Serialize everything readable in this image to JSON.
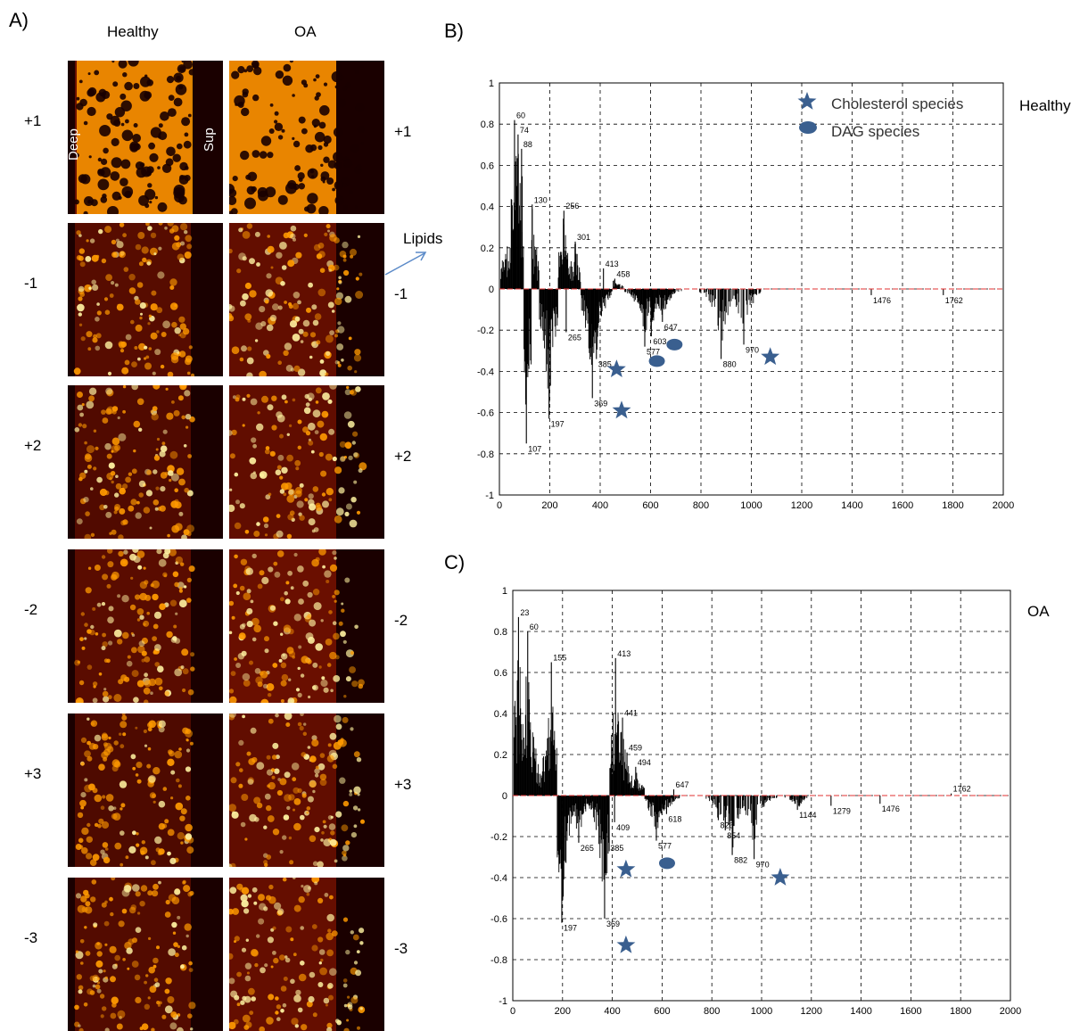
{
  "panel_a": {
    "letter": "A)",
    "columns": [
      "Healthy",
      "OA"
    ],
    "row_labels_left": [
      "+1",
      "-1",
      "+2",
      "-2",
      "+3",
      "-3"
    ],
    "row_labels_right": [
      "+1",
      "-1",
      "+2",
      "-2",
      "+3",
      "-3"
    ],
    "inset_deep": "Deep",
    "inset_sup": "Sup",
    "annotation": "Lipids",
    "colors": {
      "dark": "#1a0000",
      "mid": "#8b1500",
      "bright": "#ff9a00",
      "hot": "#fff2a0"
    }
  },
  "panel_b": {
    "letter": "B)",
    "condition": "Healthy"
  },
  "panel_c": {
    "letter": "C)",
    "condition": "OA"
  },
  "legend": {
    "star": "Cholesterol species",
    "ellipse": "DAG species",
    "marker_color": "#3a5f8f"
  },
  "chart_data": [
    {
      "type": "bar",
      "panel": "B",
      "xlim": [
        0,
        2000
      ],
      "ylim": [
        -1,
        1
      ],
      "xticks": [
        0,
        200,
        400,
        600,
        800,
        1000,
        1200,
        1400,
        1600,
        1800,
        2000
      ],
      "yticks": [
        1,
        0.8,
        0.6,
        0.4,
        0.2,
        0,
        -0.2,
        -0.4,
        -0.6,
        -0.8,
        -1
      ],
      "grid": true,
      "peaks": [
        {
          "x": 60,
          "y": 0.82,
          "label": "60"
        },
        {
          "x": 74,
          "y": 0.75,
          "label": "74"
        },
        {
          "x": 88,
          "y": 0.68,
          "label": "88"
        },
        {
          "x": 130,
          "y": 0.41,
          "label": "130"
        },
        {
          "x": 256,
          "y": 0.38,
          "label": "256"
        },
        {
          "x": 301,
          "y": 0.23,
          "label": "301"
        },
        {
          "x": 413,
          "y": 0.1,
          "label": "413"
        },
        {
          "x": 458,
          "y": 0.05,
          "label": "458"
        },
        {
          "x": 107,
          "y": -0.75,
          "label": "107"
        },
        {
          "x": 197,
          "y": -0.63,
          "label": "197"
        },
        {
          "x": 265,
          "y": -0.21,
          "label": "265"
        },
        {
          "x": 369,
          "y": -0.53,
          "label": "369"
        },
        {
          "x": 385,
          "y": -0.34,
          "label": "385"
        },
        {
          "x": 577,
          "y": -0.28,
          "label": "577"
        },
        {
          "x": 603,
          "y": -0.23,
          "label": "603"
        },
        {
          "x": 647,
          "y": -0.16,
          "label": "647"
        },
        {
          "x": 880,
          "y": -0.34,
          "label": "880"
        },
        {
          "x": 970,
          "y": -0.27,
          "label": "970"
        },
        {
          "x": 1476,
          "y": -0.03,
          "label": "1476"
        },
        {
          "x": 1762,
          "y": -0.03,
          "label": "1762"
        }
      ],
      "cholesterol_markers": [
        [
          465,
          -0.39
        ],
        [
          485,
          -0.59
        ],
        [
          1075,
          -0.33
        ]
      ],
      "dag_markers": [
        [
          625,
          -0.35
        ],
        [
          695,
          -0.27
        ]
      ]
    },
    {
      "type": "bar",
      "panel": "C",
      "xlim": [
        0,
        2000
      ],
      "ylim": [
        -1,
        1
      ],
      "xticks": [
        0,
        200,
        400,
        600,
        800,
        1000,
        1200,
        1400,
        1600,
        1800,
        2000
      ],
      "yticks": [
        1,
        0.8,
        0.6,
        0.4,
        0.2,
        0,
        -0.2,
        -0.4,
        -0.6,
        -0.8,
        -1
      ],
      "grid": true,
      "peaks": [
        {
          "x": 23,
          "y": 0.87,
          "label": "23"
        },
        {
          "x": 60,
          "y": 0.8,
          "label": "60"
        },
        {
          "x": 155,
          "y": 0.65,
          "label": "155"
        },
        {
          "x": 413,
          "y": 0.67,
          "label": "413"
        },
        {
          "x": 441,
          "y": 0.38,
          "label": "441"
        },
        {
          "x": 459,
          "y": 0.21,
          "label": "459"
        },
        {
          "x": 494,
          "y": 0.14,
          "label": "494"
        },
        {
          "x": 647,
          "y": 0.03,
          "label": "647"
        },
        {
          "x": 197,
          "y": -0.62,
          "label": "197"
        },
        {
          "x": 265,
          "y": -0.23,
          "label": "265"
        },
        {
          "x": 369,
          "y": -0.6,
          "label": "369"
        },
        {
          "x": 385,
          "y": -0.23,
          "label": "385"
        },
        {
          "x": 409,
          "y": -0.13,
          "label": "409"
        },
        {
          "x": 577,
          "y": -0.22,
          "label": "577"
        },
        {
          "x": 618,
          "y": -0.09,
          "label": "618"
        },
        {
          "x": 826,
          "y": -0.12,
          "label": "826"
        },
        {
          "x": 854,
          "y": -0.17,
          "label": "854"
        },
        {
          "x": 882,
          "y": -0.29,
          "label": "882"
        },
        {
          "x": 970,
          "y": -0.31,
          "label": "970"
        },
        {
          "x": 1144,
          "y": -0.07,
          "label": "1144"
        },
        {
          "x": 1279,
          "y": -0.05,
          "label": "1279"
        },
        {
          "x": 1476,
          "y": -0.04,
          "label": "1476"
        },
        {
          "x": 1762,
          "y": 0.01,
          "label": "1762"
        }
      ],
      "cholesterol_markers": [
        [
          455,
          -0.36
        ],
        [
          1075,
          -0.4
        ],
        [
          455,
          -0.73
        ]
      ],
      "dag_markers": [
        [
          620,
          -0.33
        ]
      ]
    }
  ]
}
